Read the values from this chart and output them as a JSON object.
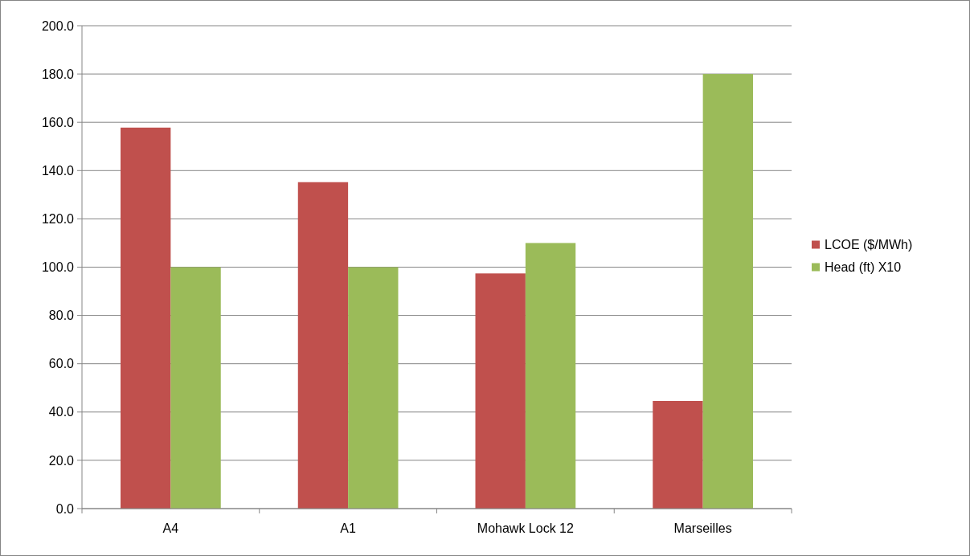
{
  "chart_data": {
    "type": "bar",
    "categories": [
      "A4",
      "A1",
      "Mohawk Lock 12",
      "Marseilles"
    ],
    "series": [
      {
        "name": "LCOE ($/MWh)",
        "color": "#c0504d",
        "values": [
          157.8,
          135.2,
          97.4,
          44.6
        ]
      },
      {
        "name": "Head (ft) X10",
        "color": "#9bbb59",
        "values": [
          100,
          100,
          110,
          180
        ]
      }
    ],
    "ylim": [
      0,
      200
    ],
    "yticks": [
      {
        "value": 0,
        "label": "0.0"
      },
      {
        "value": 20,
        "label": "20.0"
      },
      {
        "value": 40,
        "label": "40.0"
      },
      {
        "value": 60,
        "label": "60.0"
      },
      {
        "value": 80,
        "label": "80.0"
      },
      {
        "value": 100,
        "label": "100.0"
      },
      {
        "value": 120,
        "label": "120.0"
      },
      {
        "value": 140,
        "label": "140.0"
      },
      {
        "value": 160,
        "label": "160.0"
      },
      {
        "value": 180,
        "label": "180.0"
      },
      {
        "value": 200,
        "label": "200.0"
      }
    ],
    "grid": "y",
    "legend": "right"
  }
}
